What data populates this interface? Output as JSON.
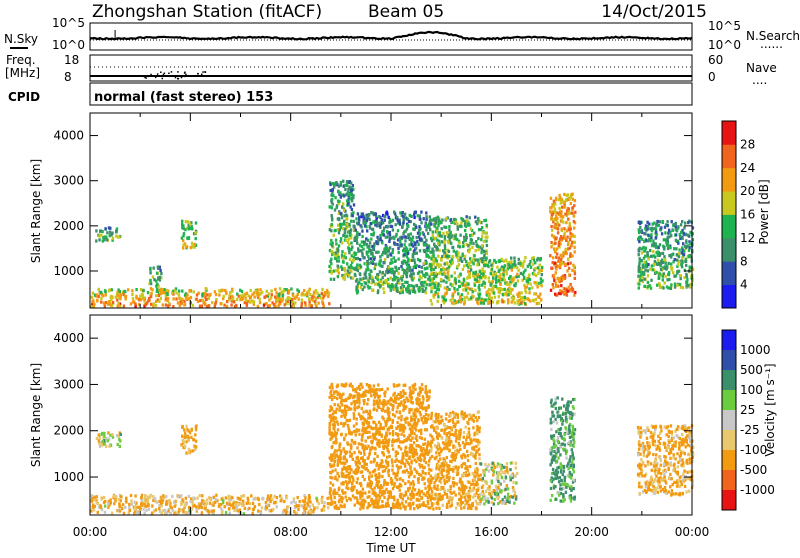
{
  "header": {
    "station": "Zhongshan Station (fitACF)",
    "beam": "Beam 05",
    "date": "14/Oct/2015"
  },
  "top_panel": {
    "left_label": "N.Sky",
    "left_ticks": [
      "10^5",
      "10^0"
    ],
    "right_ticks": [
      "10^5",
      "10^0"
    ],
    "right_label": "N.Search",
    "right_legend_line": "......"
  },
  "freq_panel": {
    "left_label_1": "Freq.",
    "left_label_2": "[MHz]",
    "left_ticks": [
      "18",
      "8"
    ],
    "right_ticks": [
      "60",
      "0"
    ],
    "right_label": "Nave",
    "right_legend_line": "...."
  },
  "cpid_panel": {
    "label": "CPID",
    "text": "normal (fast stereo) 153"
  },
  "x_axis": {
    "label": "Time UT",
    "ticks": [
      "00:00",
      "04:00",
      "08:00",
      "12:00",
      "16:00",
      "20:00",
      "00:00"
    ]
  },
  "colors": {
    "power": [
      "#1c1cf0",
      "#2f4fa8",
      "#3c8f6b",
      "#1fb34f",
      "#c8c81e",
      "#f29a10",
      "#f0641e",
      "#e81414"
    ],
    "velocity": [
      "#e81414",
      "#f0641e",
      "#f29a10",
      "#e8c86e",
      "#c8c8c8",
      "#6ccc40",
      "#3c8f6b",
      "#2f4fa8",
      "#1c1cf0"
    ]
  },
  "chart_data": [
    {
      "type": "heatmap",
      "title": "Power",
      "xlabel": "Time UT",
      "ylabel": "Slant Range [km]",
      "xlim": [
        0,
        24
      ],
      "ylim": [
        180,
        4500
      ],
      "y_ticks": [
        "1000",
        "2000",
        "3000",
        "4000"
      ],
      "colorbar": {
        "label": "Power [dB]",
        "ticks": [
          "4",
          "8",
          "12",
          "16",
          "20",
          "24",
          "28"
        ],
        "range": [
          0,
          32
        ]
      },
      "regions": [
        {
          "t0": 0.0,
          "t1": 9.5,
          "r0": 200,
          "r1": 600,
          "level": 18
        },
        {
          "t0": 0.2,
          "t1": 1.2,
          "r0": 1650,
          "r1": 1950,
          "level": 9
        },
        {
          "t0": 2.3,
          "t1": 2.8,
          "r0": 650,
          "r1": 1100,
          "level": 10
        },
        {
          "t0": 3.6,
          "t1": 4.2,
          "r0": 1500,
          "r1": 2100,
          "level": 13
        },
        {
          "t0": 9.5,
          "t1": 10.5,
          "r0": 800,
          "r1": 3000,
          "level": 10
        },
        {
          "t0": 10.5,
          "t1": 13.5,
          "r0": 500,
          "r1": 2300,
          "level": 8
        },
        {
          "t0": 13.5,
          "t1": 15.8,
          "r0": 250,
          "r1": 2200,
          "level": 12
        },
        {
          "t0": 15.8,
          "t1": 18.0,
          "r0": 250,
          "r1": 1300,
          "level": 14
        },
        {
          "t0": 18.3,
          "t1": 19.3,
          "r0": 450,
          "r1": 2700,
          "level": 20
        },
        {
          "t0": 21.8,
          "t1": 24.0,
          "r0": 600,
          "r1": 2100,
          "level": 9
        }
      ]
    },
    {
      "type": "heatmap",
      "title": "Velocity",
      "xlabel": "Time UT",
      "ylabel": "Slant Range [km]",
      "xlim": [
        0,
        24
      ],
      "ylim": [
        180,
        4500
      ],
      "y_ticks": [
        "1000",
        "2000",
        "3000",
        "4000"
      ],
      "colorbar": {
        "label": "Velocity [m s⁻¹]",
        "ticks": [
          "1000",
          "500",
          "100",
          "25",
          "-25",
          "-100",
          "-500",
          "-1000"
        ]
      },
      "regions": [
        {
          "t0": 0.0,
          "t1": 9.5,
          "r0": 200,
          "r1": 600,
          "level": -120
        },
        {
          "t0": 0.2,
          "t1": 1.2,
          "r0": 1650,
          "r1": 1950,
          "level": 0
        },
        {
          "t0": 3.6,
          "t1": 4.2,
          "r0": 1500,
          "r1": 2100,
          "level": -200
        },
        {
          "t0": 9.5,
          "t1": 13.5,
          "r0": 300,
          "r1": 3000,
          "level": -300
        },
        {
          "t0": 13.5,
          "t1": 15.5,
          "r0": 300,
          "r1": 2400,
          "level": -200
        },
        {
          "t0": 15.5,
          "t1": 17.0,
          "r0": 400,
          "r1": 1300,
          "level": 0
        },
        {
          "t0": 18.3,
          "t1": 19.3,
          "r0": 450,
          "r1": 2700,
          "level": 150
        },
        {
          "t0": 21.8,
          "t1": 24.0,
          "r0": 600,
          "r1": 2100,
          "level": -150
        }
      ]
    }
  ]
}
